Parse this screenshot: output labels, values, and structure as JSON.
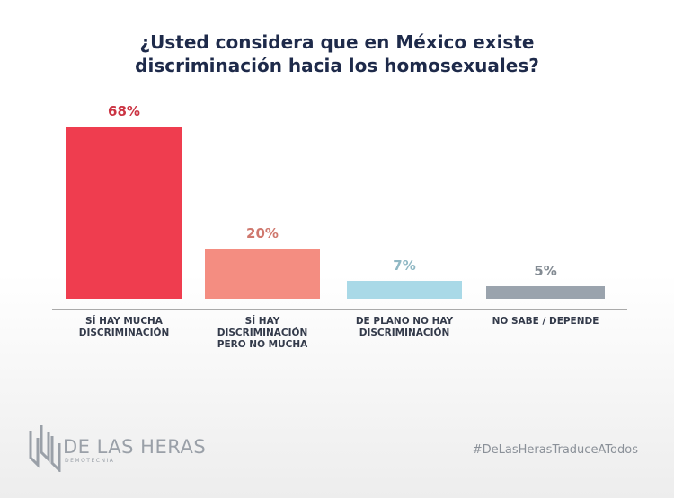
{
  "chart_data": {
    "type": "bar",
    "title": "¿Usted considera que en México existe\ndiscriminación hacia los homosexuales?",
    "categories": [
      "SÍ HAY MUCHA\nDISCRIMINACIÓN",
      "SÍ HAY\nDISCRIMINACIÓN\nPERO NO MUCHA",
      "DE PLANO NO HAY\nDISCRIMINACIÓN",
      "NO SABE / DEPENDE"
    ],
    "values": [
      68,
      20,
      7,
      5
    ],
    "value_labels": [
      "68%",
      "20%",
      "7%",
      "5%"
    ],
    "colors": [
      "#ef3d4f",
      "#f48d81",
      "#a9d9e7",
      "#9aa3ad"
    ]
  },
  "footer": {
    "brand": "DE LAS HERAS",
    "brand_sub": "DEMOTECNIA",
    "hashtag": "#DeLasHerasTraduceATodos"
  }
}
